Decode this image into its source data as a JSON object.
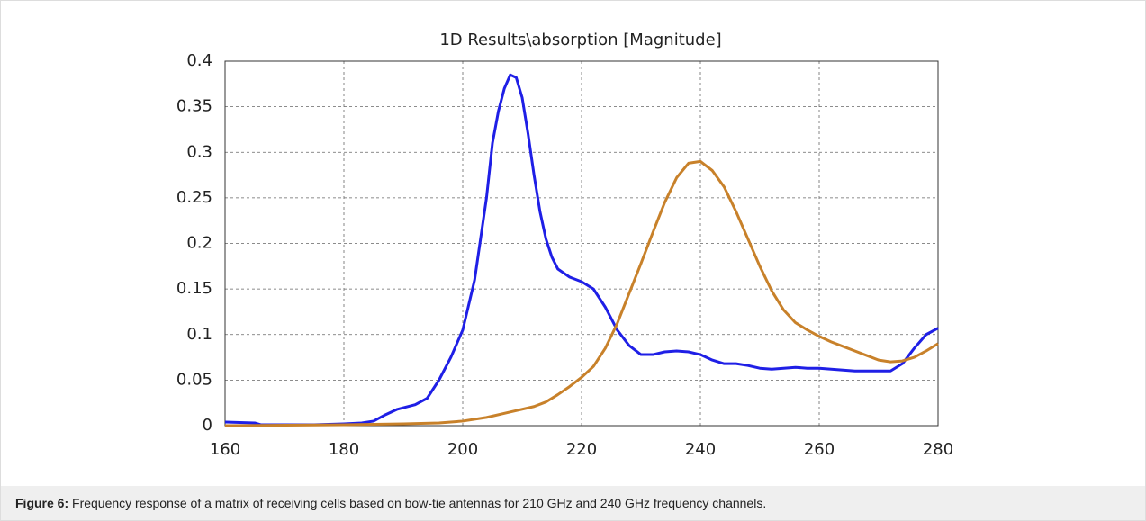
{
  "chart_data": {
    "type": "line",
    "title": "1D Results\\absorption [Magnitude]",
    "series": [
      {
        "color": "#1f1fe6",
        "x": [
          160,
          165,
          166,
          170,
          175,
          180,
          183,
          185,
          187,
          189,
          192,
          194,
          196,
          198,
          200,
          202,
          204,
          205,
          206,
          207,
          208,
          209,
          210,
          211,
          212,
          213,
          214,
          215,
          216,
          218,
          220,
          222,
          224,
          226,
          228,
          230,
          232,
          234,
          236,
          238,
          240,
          242,
          244,
          246,
          248,
          250,
          252,
          254,
          256,
          258,
          260,
          262,
          264,
          266,
          268,
          270,
          272,
          274,
          276,
          278,
          280
        ],
        "values": [
          0.004,
          0.003,
          0.001,
          0.001,
          0.001,
          0.002,
          0.003,
          0.005,
          0.012,
          0.018,
          0.023,
          0.03,
          0.05,
          0.075,
          0.105,
          0.16,
          0.25,
          0.31,
          0.345,
          0.37,
          0.385,
          0.382,
          0.36,
          0.32,
          0.275,
          0.235,
          0.205,
          0.185,
          0.172,
          0.163,
          0.158,
          0.15,
          0.13,
          0.105,
          0.088,
          0.078,
          0.078,
          0.081,
          0.082,
          0.081,
          0.078,
          0.072,
          0.068,
          0.068,
          0.066,
          0.063,
          0.062,
          0.063,
          0.064,
          0.063,
          0.063,
          0.062,
          0.061,
          0.06,
          0.06,
          0.06,
          0.06,
          0.068,
          0.085,
          0.1,
          0.107
        ]
      },
      {
        "color": "#c8812a",
        "x": [
          160,
          180,
          190,
          196,
          200,
          204,
          208,
          212,
          214,
          216,
          218,
          220,
          222,
          224,
          226,
          228,
          230,
          232,
          234,
          236,
          238,
          240,
          242,
          244,
          246,
          248,
          250,
          252,
          254,
          256,
          258,
          260,
          262,
          264,
          266,
          268,
          270,
          272,
          274,
          276,
          278,
          280
        ],
        "values": [
          0,
          0.001,
          0.002,
          0.003,
          0.005,
          0.009,
          0.015,
          0.021,
          0.026,
          0.034,
          0.043,
          0.053,
          0.065,
          0.085,
          0.112,
          0.145,
          0.178,
          0.212,
          0.245,
          0.272,
          0.288,
          0.29,
          0.28,
          0.262,
          0.235,
          0.205,
          0.175,
          0.148,
          0.127,
          0.113,
          0.105,
          0.098,
          0.092,
          0.087,
          0.082,
          0.077,
          0.072,
          0.07,
          0.071,
          0.075,
          0.082,
          0.09
        ]
      }
    ],
    "xlim": [
      160,
      280
    ],
    "xticks": [
      160,
      180,
      200,
      220,
      240,
      260,
      280
    ],
    "ylim": [
      0,
      0.4
    ],
    "yticks": [
      0,
      0.05,
      0.1,
      0.15,
      0.2,
      0.25,
      0.3,
      0.35,
      0.4
    ],
    "grid": true
  },
  "caption": {
    "label": "Figure 6:",
    "text": "Frequency response of a matrix of receiving cells based on bow-tie antennas for 210 GHz and 240 GHz frequency channels."
  }
}
